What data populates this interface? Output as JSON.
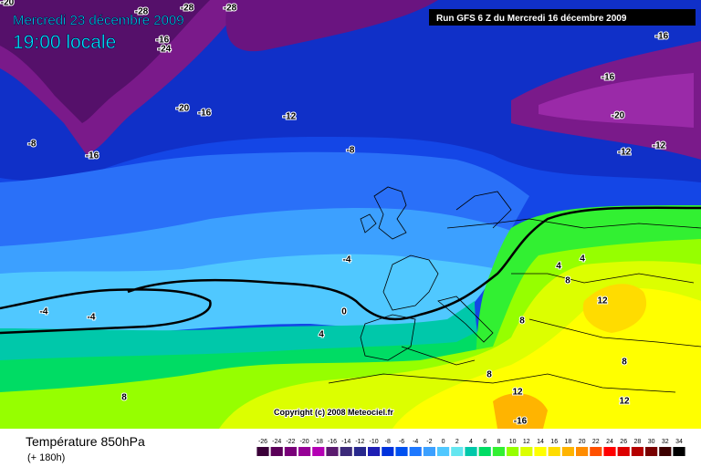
{
  "header": {
    "date": "Mercredi 23 décembre 2009",
    "time": "19:00 locale",
    "run": "Run GFS 6 Z du Mercredi 16 décembre 2009"
  },
  "map": {
    "copyright": "Copyright (c) 2008 Meteociel.fr",
    "contour_labels": [
      "-20",
      "-28",
      "-28",
      "-28",
      "-24",
      "-16",
      "-16",
      "-8",
      "-16",
      "-20",
      "-16",
      "-12",
      "-8",
      "-16",
      "-20",
      "-12",
      "-12",
      "-4",
      "-4",
      "-4",
      "0",
      "4",
      "8",
      "4",
      "4",
      "8",
      "12",
      "8",
      "8",
      "12",
      "12",
      "-16",
      "8"
    ]
  },
  "footer": {
    "title": "Température 850hPa",
    "subtitle": "(+ 180h)"
  },
  "legend": {
    "labels": [
      "-26",
      "-24",
      "-22",
      "-20",
      "-18",
      "-16",
      "-14",
      "-12",
      "-10",
      "-8",
      "-6",
      "-4",
      "-2",
      "0",
      "2",
      "4",
      "6",
      "8",
      "10",
      "12",
      "14",
      "16",
      "18",
      "20",
      "22",
      "24",
      "26",
      "28",
      "30",
      "32",
      "34"
    ],
    "colors": [
      "#3a0038",
      "#5a0058",
      "#780078",
      "#960096",
      "#b400b4",
      "#5a1a6e",
      "#3c2a7a",
      "#28288c",
      "#1e1eb4",
      "#0032dc",
      "#0050f0",
      "#1e78ff",
      "#3ca0ff",
      "#50c8ff",
      "#64e6f0",
      "#00c8aa",
      "#00dc64",
      "#32f032",
      "#96ff00",
      "#dcff00",
      "#ffff00",
      "#ffdc00",
      "#ffb400",
      "#ff8c00",
      "#ff5000",
      "#ff0000",
      "#dc0000",
      "#b40000",
      "#780000",
      "#3c0000",
      "#000000"
    ]
  }
}
